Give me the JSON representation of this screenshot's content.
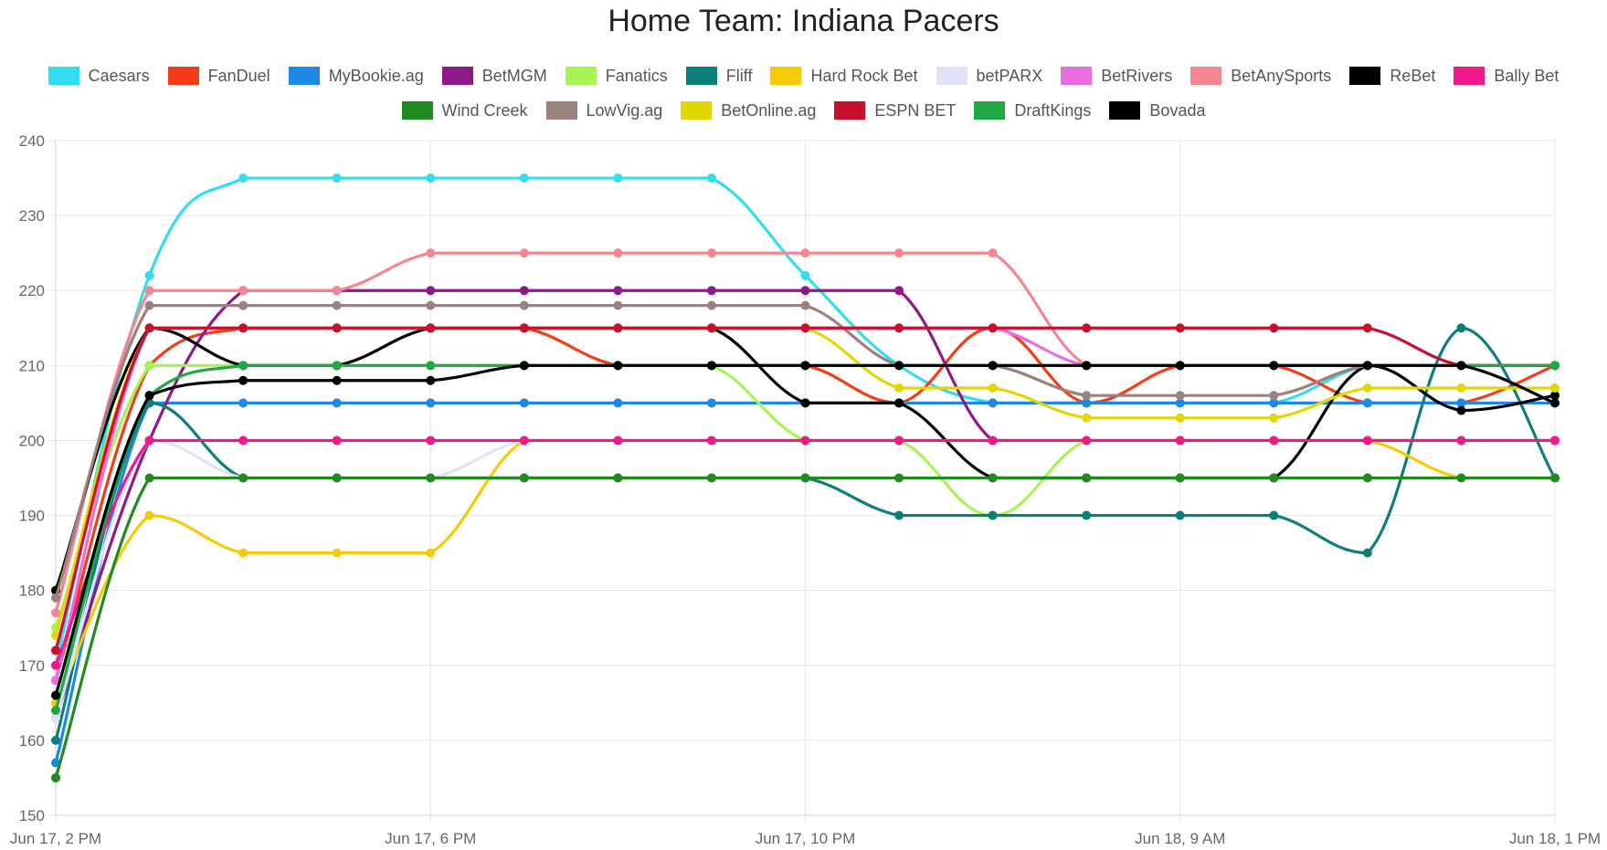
{
  "chart_data": {
    "type": "line",
    "title": "Home Team: Indiana Pacers",
    "x_tick_labels": [
      "Jun 17, 2 PM",
      "Jun 17, 6 PM",
      "Jun 17, 10 PM",
      "Jun 18, 9 AM",
      "Jun 18, 1 PM"
    ],
    "y_ticks": [
      150,
      160,
      170,
      180,
      190,
      200,
      210,
      220,
      230,
      240
    ],
    "ylim": [
      150,
      240
    ],
    "x_points": 17,
    "legend_position": "top",
    "grid": true,
    "series": [
      {
        "name": "Caesars",
        "color": "#33DDF0",
        "values": [
          170,
          222,
          235,
          235,
          235,
          235,
          235,
          235,
          222,
          210,
          205,
          205,
          205,
          205,
          210,
          210,
          210
        ]
      },
      {
        "name": "FanDuel",
        "color": "#F23D16",
        "values": [
          168,
          210,
          215,
          215,
          215,
          215,
          210,
          210,
          210,
          205,
          215,
          205,
          210,
          210,
          205,
          205,
          210
        ]
      },
      {
        "name": "MyBookie.ag",
        "color": "#1E88E5",
        "values": [
          157,
          205,
          205,
          205,
          205,
          205,
          205,
          205,
          205,
          205,
          205,
          205,
          205,
          205,
          205,
          205,
          205
        ]
      },
      {
        "name": "BetMGM",
        "color": "#8E1A88",
        "values": [
          163,
          200,
          220,
          220,
          220,
          220,
          220,
          220,
          220,
          220,
          200,
          200,
          200,
          200,
          200,
          200,
          200
        ]
      },
      {
        "name": "Fanatics",
        "color": "#A6F555",
        "values": [
          175,
          210,
          210,
          210,
          210,
          210,
          210,
          210,
          200,
          200,
          190,
          200,
          200,
          200,
          200,
          200,
          200
        ]
      },
      {
        "name": "Fliff",
        "color": "#0D7F7B",
        "values": [
          160,
          205,
          195,
          195,
          195,
          195,
          195,
          195,
          195,
          190,
          190,
          190,
          190,
          190,
          185,
          215,
          195
        ]
      },
      {
        "name": "Hard Rock Bet",
        "color": "#F6CB05",
        "values": [
          165,
          190,
          185,
          185,
          185,
          200,
          200,
          200,
          200,
          200,
          200,
          200,
          200,
          200,
          200,
          195,
          195
        ]
      },
      {
        "name": "betPARX",
        "color": "#E2E2F7",
        "values": [
          163,
          200,
          195,
          195,
          195,
          200,
          200,
          200,
          200,
          200,
          200,
          200,
          200,
          200,
          200,
          200,
          200
        ]
      },
      {
        "name": "BetRivers",
        "color": "#E96DDE",
        "values": [
          168,
          215,
          215,
          215,
          215,
          215,
          215,
          215,
          215,
          215,
          215,
          210,
          210,
          210,
          210,
          210,
          210
        ]
      },
      {
        "name": "BetAnySports",
        "color": "#F48591",
        "values": [
          177,
          220,
          220,
          220,
          225,
          225,
          225,
          225,
          225,
          225,
          225,
          210,
          210,
          210,
          210,
          210,
          210
        ]
      },
      {
        "name": "ReBet",
        "color": "#000000",
        "values": [
          180,
          215,
          210,
          210,
          215,
          215,
          215,
          215,
          205,
          205,
          195,
          195,
          195,
          195,
          210,
          204,
          206
        ]
      },
      {
        "name": "Bally Bet",
        "color": "#F0198C",
        "values": [
          170,
          200,
          200,
          200,
          200,
          200,
          200,
          200,
          200,
          200,
          200,
          200,
          200,
          200,
          200,
          200,
          200
        ]
      },
      {
        "name": "Wind Creek",
        "color": "#1F8B21",
        "values": [
          155,
          195,
          195,
          195,
          195,
          195,
          195,
          195,
          195,
          195,
          195,
          195,
          195,
          195,
          195,
          195,
          195
        ]
      },
      {
        "name": "LowVig.ag",
        "color": "#9B827D",
        "values": [
          179,
          218,
          218,
          218,
          218,
          218,
          218,
          218,
          218,
          210,
          210,
          206,
          206,
          206,
          210,
          210,
          210
        ]
      },
      {
        "name": "BetOnline.ag",
        "color": "#E0D800",
        "values": [
          174,
          215,
          215,
          215,
          215,
          215,
          215,
          215,
          215,
          207,
          207,
          203,
          203,
          203,
          207,
          207,
          207
        ]
      },
      {
        "name": "ESPN BET",
        "color": "#C8102E",
        "values": [
          172,
          215,
          215,
          215,
          215,
          215,
          215,
          215,
          215,
          215,
          215,
          215,
          215,
          215,
          215,
          210,
          210
        ]
      },
      {
        "name": "DraftKings",
        "color": "#1FA843",
        "values": [
          164,
          206,
          210,
          210,
          210,
          210,
          210,
          210,
          210,
          210,
          210,
          210,
          210,
          210,
          210,
          210,
          210
        ]
      },
      {
        "name": "Bovada",
        "color": "#000000",
        "values": [
          166,
          206,
          208,
          208,
          208,
          210,
          210,
          210,
          210,
          210,
          210,
          210,
          210,
          210,
          210,
          210,
          205
        ]
      }
    ]
  }
}
